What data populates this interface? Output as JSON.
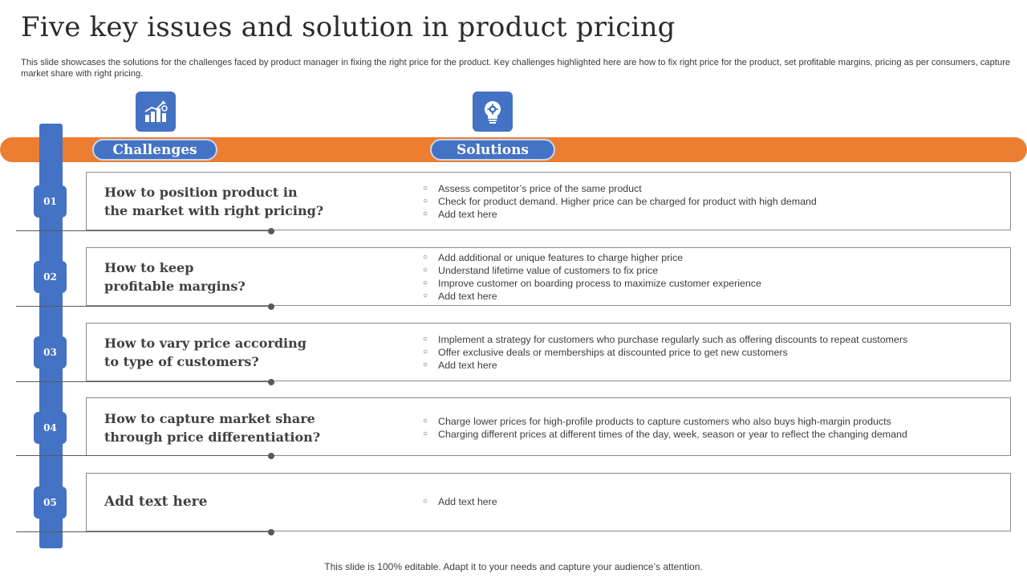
{
  "title": "Five key issues and solution in product pricing",
  "subtitle": "This slide showcases the solutions for the challenges faced by product manager in fixing the right price for the product. Key challenges highlighted here are how to fix right price for the product, set profitable margins, pricing as per consumers, capture market share with right pricing.",
  "headers": {
    "challenges": "Challenges",
    "solutions": "Solutions",
    "challenges_icon": "growth-chart-icon",
    "solutions_icon": "lightbulb-gear-icon"
  },
  "colors": {
    "accent_blue": "#4472C4",
    "accent_orange": "#ED7D31"
  },
  "rows": [
    {
      "number": "01",
      "question": [
        "How to position product in",
        "the market with right pricing?"
      ],
      "solutions": [
        "Assess competitor’s price of the same product",
        "Check for product demand. Higher price can be charged for product with high demand",
        "Add text here"
      ]
    },
    {
      "number": "02",
      "question": [
        "How to keep",
        "profitable margins?"
      ],
      "solutions": [
        "Add additional or unique features to charge higher price",
        "Understand lifetime value of customers to fix price",
        "Improve  customer on boarding process to maximize customer experience",
        "Add text here"
      ]
    },
    {
      "number": "03",
      "question": [
        "How to vary price according",
        "to type of  customers?"
      ],
      "solutions": [
        "Implement  a strategy for customers who purchase regularly such as offering  discounts to repeat customers",
        "Offer exclusive deals or memberships  at discounted price to get new customers",
        "Add text here"
      ]
    },
    {
      "number": "04",
      "question": [
        "How to capture market share",
        "through price differentiation?"
      ],
      "solutions": [
        "Charge lower prices for high-profile  products to capture customers who also buys high-margin  products",
        "Charging different  prices at different times of the day, week, season or year to reflect the changing demand"
      ]
    },
    {
      "number": "05",
      "question": [
        "Add text here"
      ],
      "solutions": [
        "Add text here"
      ]
    }
  ],
  "footer": "This slide is 100% editable. Adapt it to your needs and capture your audience’s attention."
}
